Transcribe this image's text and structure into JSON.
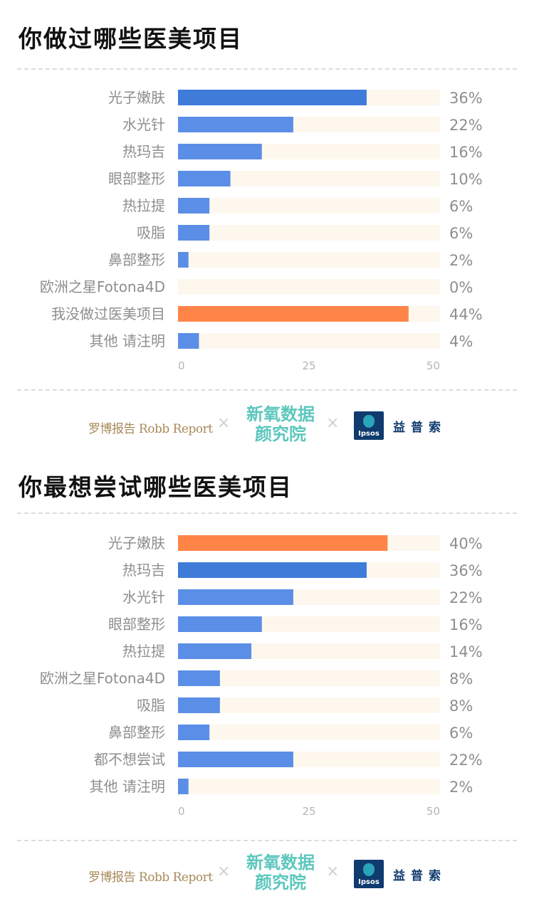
{
  "section1": {
    "title": "你做过哪些医美项目"
  },
  "section2": {
    "title": "你最想尝试哪些医美项目"
  },
  "logos": {
    "robb_cn": "罗博报告",
    "robb_en": "Robb Report",
    "times": "×",
    "xinyang_line1": "新氧数据",
    "xinyang_line2": "颜究院",
    "ipsos_logo": "Ipsos",
    "ipsos_cn": "益普索"
  },
  "colors": {
    "bar_default": "#5b8ee6",
    "bar_top": "#3f7bd9",
    "bar_highlight": "#ff8448",
    "track": "#fdf7ee"
  },
  "chart_data": [
    {
      "type": "bar",
      "orientation": "horizontal",
      "title": "你做过哪些医美项目",
      "categories": [
        "光子嫩肤",
        "水光针",
        "热玛吉",
        "眼部整形",
        "热拉提",
        "吸脂",
        "鼻部整形",
        "欧洲之星Fotona4D",
        "我没做过医美项目",
        "其他 请注明"
      ],
      "values": [
        36,
        22,
        16,
        10,
        6,
        6,
        2,
        0,
        44,
        4
      ],
      "value_labels": [
        "36%",
        "22%",
        "16%",
        "10%",
        "6%",
        "6%",
        "2%",
        "0%",
        "44%",
        "4%"
      ],
      "bar_colors": [
        "#3f7bd9",
        "#5b8ee6",
        "#5b8ee6",
        "#5b8ee6",
        "#5b8ee6",
        "#5b8ee6",
        "#5b8ee6",
        "#5b8ee6",
        "#ff8448",
        "#5b8ee6"
      ],
      "xlim": [
        0,
        50
      ],
      "xticks": [
        "0",
        "25",
        "50"
      ],
      "grid": false
    },
    {
      "type": "bar",
      "orientation": "horizontal",
      "title": "你最想尝试哪些医美项目",
      "categories": [
        "光子嫩肤",
        "热玛吉",
        "水光针",
        "眼部整形",
        "热拉提",
        "欧洲之星Fotona4D",
        "吸脂",
        "鼻部整形",
        "都不想尝试",
        "其他 请注明"
      ],
      "values": [
        40,
        36,
        22,
        16,
        14,
        8,
        8,
        6,
        22,
        2
      ],
      "value_labels": [
        "40%",
        "36%",
        "22%",
        "16%",
        "14%",
        "8%",
        "8%",
        "6%",
        "22%",
        "2%"
      ],
      "bar_colors": [
        "#ff8448",
        "#3f7bd9",
        "#5b8ee6",
        "#5b8ee6",
        "#5b8ee6",
        "#5b8ee6",
        "#5b8ee6",
        "#5b8ee6",
        "#5b8ee6",
        "#5b8ee6"
      ],
      "xlim": [
        0,
        50
      ],
      "xticks": [
        "0",
        "25",
        "50"
      ],
      "grid": false
    }
  ]
}
